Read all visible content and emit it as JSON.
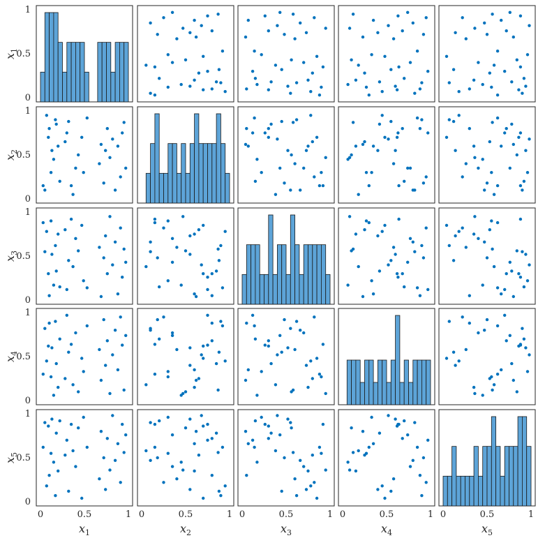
{
  "chart_data": {
    "type": "scatter",
    "layout": "scatter-matrix",
    "variables": [
      "x1",
      "x2",
      "x3",
      "x4",
      "x5"
    ],
    "axis_label_base": "x",
    "axis_label_subscripts": [
      "1",
      "2",
      "3",
      "4",
      "5"
    ],
    "ticks": [
      0,
      0.5,
      1
    ],
    "tick_labels": [
      "0",
      "0.5",
      "1"
    ],
    "xlim": [
      0,
      1
    ],
    "ylim": [
      0,
      1
    ],
    "diagonal": "histogram",
    "grid": false,
    "colors": {
      "marker": "#0072BD",
      "bar_fill": "#5DA4D8",
      "bar_edge": "#1a1a1a",
      "axes": "#262626"
    },
    "samples": {
      "x1": [
        0.03,
        0.05,
        0.07,
        0.09,
        0.1,
        0.12,
        0.13,
        0.15,
        0.17,
        0.18,
        0.2,
        0.22,
        0.28,
        0.3,
        0.32,
        0.35,
        0.37,
        0.4,
        0.43,
        0.47,
        0.49,
        0.53,
        0.67,
        0.69,
        0.72,
        0.74,
        0.76,
        0.79,
        0.82,
        0.85,
        0.88,
        0.91,
        0.93,
        0.95,
        0.97
      ],
      "x2": [
        0.15,
        0.1,
        0.95,
        0.7,
        0.8,
        0.3,
        0.55,
        0.45,
        0.9,
        0.85,
        0.6,
        0.2,
        0.65,
        0.75,
        0.88,
        0.15,
        0.05,
        0.35,
        0.5,
        0.7,
        0.3,
        0.92,
        0.4,
        0.62,
        0.18,
        0.55,
        0.8,
        0.47,
        0.68,
        0.1,
        0.6,
        0.25,
        0.75,
        0.87,
        0.35
      ],
      "x3": [
        0.88,
        0.55,
        0.78,
        0.3,
        0.05,
        0.9,
        0.52,
        0.17,
        0.62,
        0.33,
        0.75,
        0.15,
        0.8,
        0.12,
        0.45,
        0.92,
        0.38,
        0.7,
        0.56,
        0.85,
        0.22,
        0.14,
        0.6,
        0.04,
        0.48,
        0.73,
        0.3,
        0.95,
        0.4,
        0.66,
        0.07,
        0.82,
        0.26,
        0.58,
        0.43
      ],
      "x4": [
        0.3,
        0.82,
        0.45,
        0.62,
        0.88,
        0.27,
        0.6,
        0.06,
        0.9,
        0.42,
        0.15,
        0.7,
        0.25,
        0.97,
        0.55,
        0.64,
        0.18,
        0.77,
        0.1,
        0.48,
        0.33,
        0.85,
        0.58,
        0.23,
        0.92,
        0.4,
        0.68,
        0.08,
        0.52,
        0.8,
        0.35,
        0.95,
        0.63,
        0.12,
        0.74
      ],
      "x5": [
        0.62,
        0.9,
        0.18,
        0.86,
        0.3,
        0.55,
        0.94,
        0.45,
        0.07,
        0.78,
        0.35,
        0.92,
        0.53,
        0.7,
        0.12,
        0.88,
        0.58,
        0.4,
        0.84,
        0.04,
        0.96,
        0.62,
        0.26,
        0.8,
        0.5,
        0.14,
        0.72,
        0.36,
        0.98,
        0.47,
        0.66,
        0.22,
        0.88,
        0.56,
        0.76
      ]
    }
  }
}
